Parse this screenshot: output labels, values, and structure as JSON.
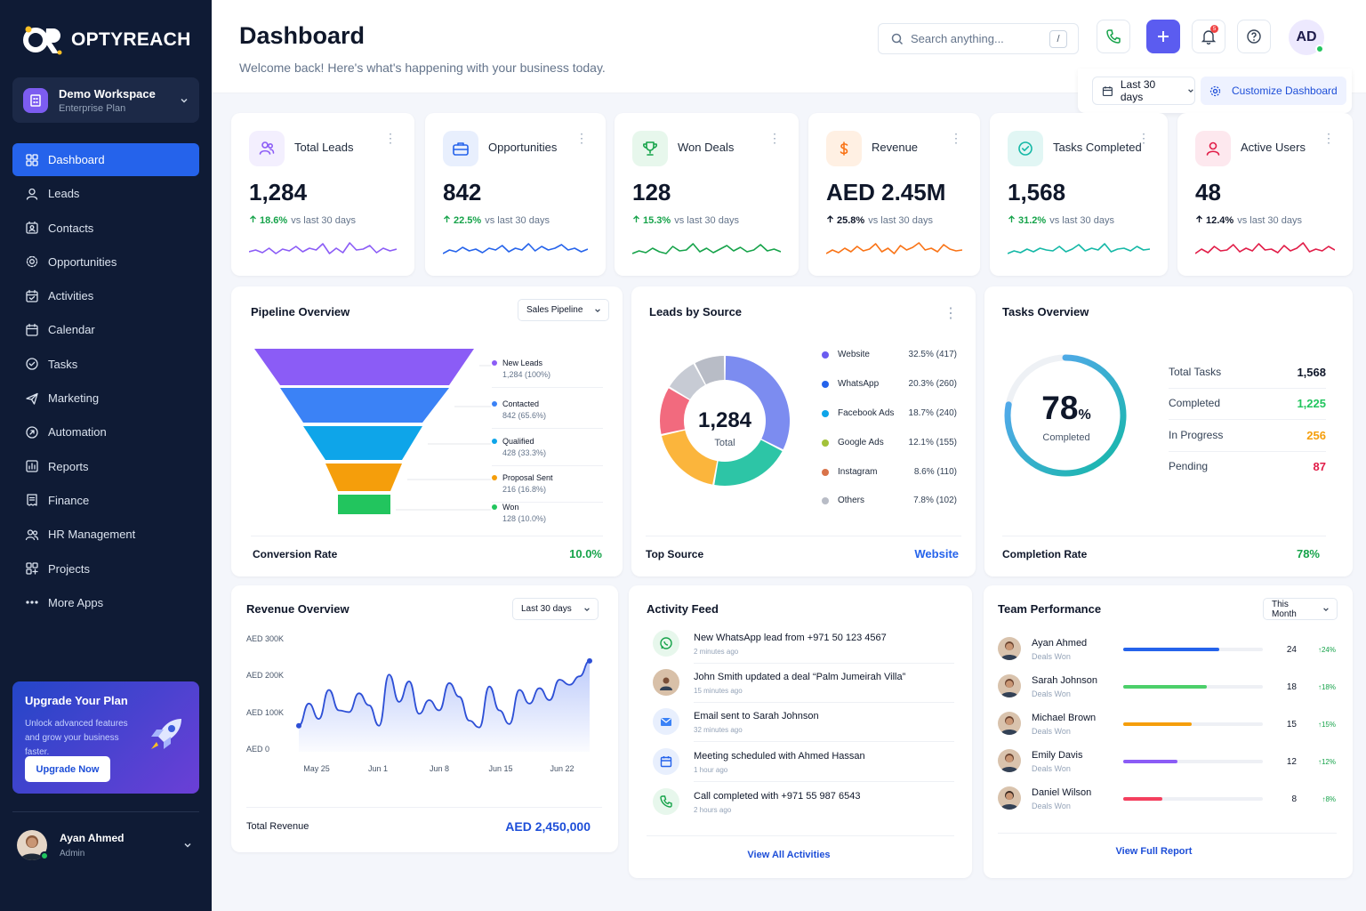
{
  "brand": {
    "name": "OPTYREACH"
  },
  "workspace": {
    "name": "Demo Workspace",
    "plan": "Enterprise Plan"
  },
  "nav": [
    {
      "label": "Dashboard",
      "icon": "grid-icon",
      "active": true
    },
    {
      "label": "Leads",
      "icon": "user-icon"
    },
    {
      "label": "Contacts",
      "icon": "contact-card-icon"
    },
    {
      "label": "Opportunities",
      "icon": "gear-icon"
    },
    {
      "label": "Activities",
      "icon": "activity-calendar-icon"
    },
    {
      "label": "Calendar",
      "icon": "calendar-icon"
    },
    {
      "label": "Tasks",
      "icon": "check-circle-icon"
    },
    {
      "label": "Marketing",
      "icon": "send-icon"
    },
    {
      "label": "Automation",
      "icon": "automation-icon"
    },
    {
      "label": "Reports",
      "icon": "bar-chart-icon"
    },
    {
      "label": "Finance",
      "icon": "receipt-icon"
    },
    {
      "label": "HR Management",
      "icon": "users-icon"
    },
    {
      "label": "Projects",
      "icon": "projects-icon"
    },
    {
      "label": "More Apps",
      "icon": "more-dots-icon"
    }
  ],
  "upgrade": {
    "title": "Upgrade Your Plan",
    "desc": "Unlock advanced features and grow your business faster.",
    "button": "Upgrade Now"
  },
  "user": {
    "name": "Ayan Ahmed",
    "role": "Admin"
  },
  "header": {
    "title": "Dashboard",
    "subtitle": "Welcome back! Here's what's happening with your business today.",
    "search_placeholder": "Search anything...",
    "search_shortcut": "/",
    "avatar_initials": "AD",
    "notification_count": "5",
    "range": "Last 30 days",
    "customize": "Customize Dashboard"
  },
  "kpis": [
    {
      "label": "Total Leads",
      "value": "1,284",
      "change": "18.6%",
      "period": "vs last 30 days",
      "color": "#8b5cf6",
      "bg": "#f3effe"
    },
    {
      "label": "Opportunities",
      "value": "842",
      "change": "22.5%",
      "period": "vs last 30 days",
      "color": "#2563eb",
      "bg": "#e8effd"
    },
    {
      "label": "Won Deals",
      "value": "128",
      "change": "15.3%",
      "period": "vs last 30 days",
      "color": "#16a34a",
      "bg": "#e7f7ec"
    },
    {
      "label": "Revenue",
      "value": "AED 2.45M",
      "change": "25.8%",
      "period": "vs last 30 days",
      "color": "#f97316",
      "bg": "#fff0e3"
    },
    {
      "label": "Tasks Completed",
      "value": "1,568",
      "change": "31.2%",
      "period": "vs last 30 days",
      "color": "#14b8a6",
      "bg": "#e1f6f4"
    },
    {
      "label": "Active Users",
      "value": "48",
      "change": "12.4%",
      "period": "vs last 30 days",
      "color": "#e11d48",
      "bg": "#fde8ee"
    }
  ],
  "pipeline": {
    "title": "Pipeline Overview",
    "select": "Sales Pipeline",
    "stages": [
      {
        "name": "New Leads",
        "value": 1284,
        "label": "1,284 (100%)",
        "color": "#8b5cf6"
      },
      {
        "name": "Contacted",
        "value": 842,
        "label": "842 (65.6%)",
        "color": "#3b82f6"
      },
      {
        "name": "Qualified",
        "value": 428,
        "label": "428 (33.3%)",
        "color": "#0ea5e9"
      },
      {
        "name": "Proposal Sent",
        "value": 216,
        "label": "216 (16.8%)",
        "color": "#f59e0b"
      },
      {
        "name": "Won",
        "value": 128,
        "label": "128 (10.0%)",
        "color": "#22c55e"
      }
    ],
    "footer_label": "Conversion Rate",
    "footer_value": "10.0%"
  },
  "sources": {
    "title": "Leads by Source",
    "total": "1,284",
    "total_label": "Total",
    "items": [
      {
        "name": "Website",
        "pct": 32.5,
        "label": "32.5% (417)",
        "color": "#7c8cf0"
      },
      {
        "name": "WhatsApp",
        "pct": 20.3,
        "label": "20.3% (260)",
        "color": "#2dc5a6"
      },
      {
        "name": "Facebook Ads",
        "pct": 18.7,
        "label": "18.7% (240)",
        "color": "#fbb53c"
      },
      {
        "name": "Google Ads",
        "pct": 12.1,
        "label": "12.1% (155)",
        "color": "#f26a7e"
      },
      {
        "name": "Instagram",
        "pct": 8.6,
        "label": "8.6% (110)",
        "color": "#c7cbd4"
      },
      {
        "name": "Others",
        "pct": 7.8,
        "label": "7.8% (102)",
        "color": "#b8bcc6"
      }
    ],
    "footer_label": "Top Source",
    "footer_value": "Website"
  },
  "tasks": {
    "title": "Tasks Overview",
    "percent": "78",
    "percent_sign": "%",
    "completed_label": "Completed",
    "ring_fraction": 0.78,
    "rows": [
      {
        "label": "Total Tasks",
        "value": "1,568",
        "color": "#0f172a"
      },
      {
        "label": "Completed",
        "value": "1,225",
        "color": "#22c55e"
      },
      {
        "label": "In Progress",
        "value": "256",
        "color": "#f59e0b"
      },
      {
        "label": "Pending",
        "value": "87",
        "color": "#e11d48"
      }
    ],
    "footer_label": "Completion Rate",
    "footer_value": "78%"
  },
  "revenue": {
    "title": "Revenue Overview",
    "select": "Last 30 days",
    "footer_label": "Total Revenue",
    "footer_value": "AED 2,450,000"
  },
  "chart_data": {
    "type": "area",
    "x": [
      1,
      2,
      3,
      4,
      5,
      6,
      7,
      8,
      9,
      10,
      11,
      12,
      13,
      14,
      15,
      16,
      17,
      18,
      19,
      20,
      21,
      22,
      23,
      24,
      25,
      26,
      27,
      28,
      29,
      30
    ],
    "categories": [
      "May 25",
      "Jun 1",
      "Jun 8",
      "Jun 15",
      "Jun 22"
    ],
    "series": [
      {
        "values": [
          45,
          110,
          65,
          150,
          90,
          85,
          140,
          105,
          45,
          195,
          115,
          175,
          80,
          120,
          90,
          170,
          130,
          60,
          40,
          160,
          90,
          50,
          150,
          110,
          155,
          120,
          180,
          165,
          190,
          235
        ]
      }
    ],
    "yticks": [
      "AED 0",
      "AED 100K",
      "AED 200K",
      "AED 300K"
    ],
    "ylim": [
      0,
      300
    ],
    "grid": false
  },
  "activity": {
    "title": "Activity Feed",
    "items": [
      {
        "text": "New WhatsApp lead from +971 50 123 4567",
        "time": "2 minutes ago",
        "icon": "whatsapp-icon"
      },
      {
        "text": "John Smith updated a deal “Palm Jumeirah Villa”",
        "time": "15 minutes ago",
        "icon": "avatar"
      },
      {
        "text": "Email sent to Sarah Johnson",
        "time": "32 minutes ago",
        "icon": "mail-icon"
      },
      {
        "text": "Meeting scheduled with Ahmed Hassan",
        "time": "1 hour ago",
        "icon": "calendar-icon"
      },
      {
        "text": "Call completed with +971 55 987 6543",
        "time": "2 hours ago",
        "icon": "phone-icon"
      }
    ],
    "link": "View All Activities"
  },
  "team": {
    "title": "Team Performance",
    "select": "This Month",
    "members": [
      {
        "name": "Ayan Ahmed",
        "sub": "Deals Won",
        "count": "24",
        "pct": "24%",
        "fill": 0.69,
        "color": "#2563eb"
      },
      {
        "name": "Sarah Johnson",
        "sub": "Deals Won",
        "count": "18",
        "pct": "18%",
        "fill": 0.6,
        "color": "#4ccf6a"
      },
      {
        "name": "Michael Brown",
        "sub": "Deals Won",
        "count": "15",
        "pct": "15%",
        "fill": 0.49,
        "color": "#f59e0b"
      },
      {
        "name": "Emily Davis",
        "sub": "Deals Won",
        "count": "12",
        "pct": "12%",
        "fill": 0.39,
        "color": "#8b5cf6"
      },
      {
        "name": "Daniel Wilson",
        "sub": "Deals Won",
        "count": "8",
        "pct": "8%",
        "fill": 0.28,
        "color": "#f43f5e"
      }
    ],
    "link": "View Full Report"
  }
}
